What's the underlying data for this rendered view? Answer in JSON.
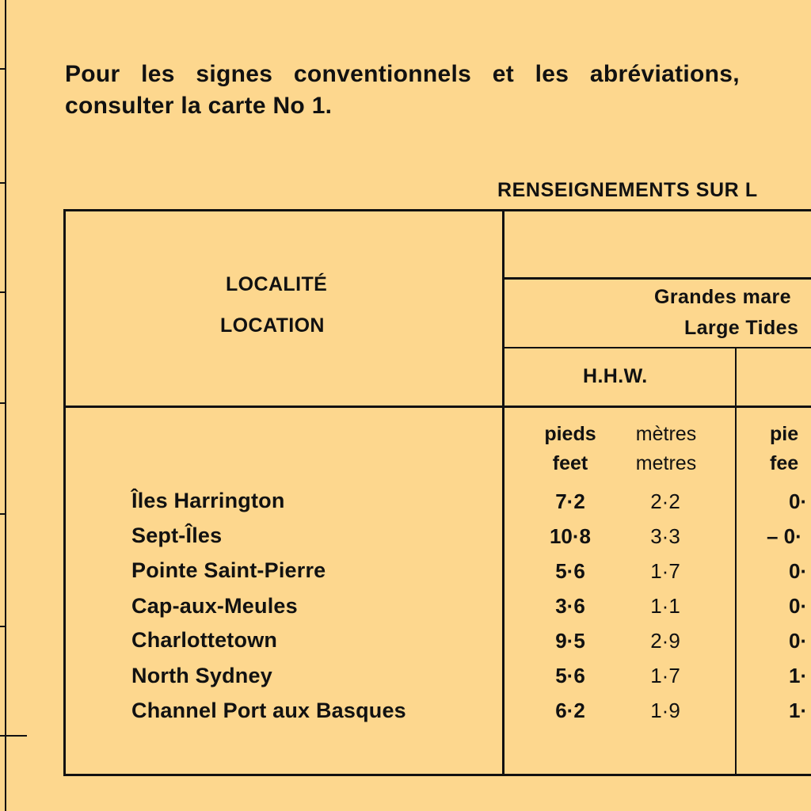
{
  "intro": {
    "line1": "Pour les signes conventionnels et les abréviations,",
    "line2": "consulter la carte No 1."
  },
  "section_title": "RENSEIGNEMENTS SUR L",
  "table": {
    "location_header_fr": "LOCALITÉ",
    "location_header_en": "LOCATION",
    "group_header_fr": "Grandes mare",
    "group_header_en": "Large Tides",
    "col_hhw": "H.H.W.",
    "units": {
      "feet_fr": "pieds",
      "feet_en": "feet",
      "metres_fr": "mètres",
      "metres_en": "metres",
      "feet2_fr": "pie",
      "feet2_en": "fee"
    },
    "rows": [
      {
        "location": "Îles Harrington",
        "hhw_feet": "7·2",
        "hhw_metres": "2·2",
        "next_feet": "0·"
      },
      {
        "location": "Sept-Îles",
        "hhw_feet": "10·8",
        "hhw_metres": "3·3",
        "next_feet": "– 0·"
      },
      {
        "location": "Pointe Saint-Pierre",
        "hhw_feet": "5·6",
        "hhw_metres": "1·7",
        "next_feet": "0·"
      },
      {
        "location": "Cap-aux-Meules",
        "hhw_feet": "3·6",
        "hhw_metres": "1·1",
        "next_feet": "0·"
      },
      {
        "location": "Charlottetown",
        "hhw_feet": "9·5",
        "hhw_metres": "2·9",
        "next_feet": "0·"
      },
      {
        "location": "North Sydney",
        "hhw_feet": "5·6",
        "hhw_metres": "1·7",
        "next_feet": "1·"
      },
      {
        "location": "Channel Port aux Basques",
        "hhw_feet": "6·2",
        "hhw_metres": "1·9",
        "next_feet": "1·"
      }
    ]
  }
}
